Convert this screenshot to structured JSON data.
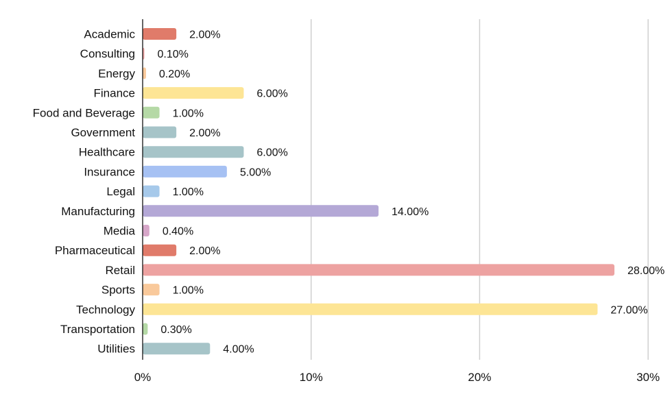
{
  "chart_data": {
    "type": "bar",
    "orientation": "horizontal",
    "title": "",
    "xlabel": "",
    "ylabel": "",
    "xlim": [
      0,
      30
    ],
    "x_ticks": [
      {
        "value": 0,
        "label": "0%"
      },
      {
        "value": 10,
        "label": "10%"
      },
      {
        "value": 20,
        "label": "20%"
      },
      {
        "value": 30,
        "label": "30%"
      }
    ],
    "grid": "vertical",
    "legend": "none",
    "categories": [
      "Academic",
      "Consulting",
      "Energy",
      "Finance",
      "Food and Beverage",
      "Government",
      "Healthcare",
      "Insurance",
      "Legal",
      "Manufacturing",
      "Media",
      "Pharmaceutical",
      "Retail",
      "Sports",
      "Technology",
      "Transportation",
      "Utilities"
    ],
    "values": [
      2.0,
      0.1,
      0.2,
      6.0,
      1.0,
      2.0,
      6.0,
      5.0,
      1.0,
      14.0,
      0.4,
      2.0,
      28.0,
      1.0,
      27.0,
      0.3,
      4.0
    ],
    "value_labels": [
      "2.00%",
      "0.10%",
      "0.20%",
      "6.00%",
      "1.00%",
      "2.00%",
      "6.00%",
      "5.00%",
      "1.00%",
      "14.00%",
      "0.40%",
      "2.00%",
      "28.00%",
      "1.00%",
      "27.00%",
      "0.30%",
      "4.00%"
    ],
    "colors": [
      "#e07b6a",
      "#eda2a1",
      "#f9c99b",
      "#fde595",
      "#b5d9a6",
      "#a6c4c8",
      "#a6c4c8",
      "#a6c1f3",
      "#a6c9ea",
      "#b4a8d6",
      "#d6a6c8",
      "#e07b6a",
      "#eda2a1",
      "#f9c99b",
      "#fde595",
      "#b5d9a6",
      "#a6c4c8"
    ]
  }
}
